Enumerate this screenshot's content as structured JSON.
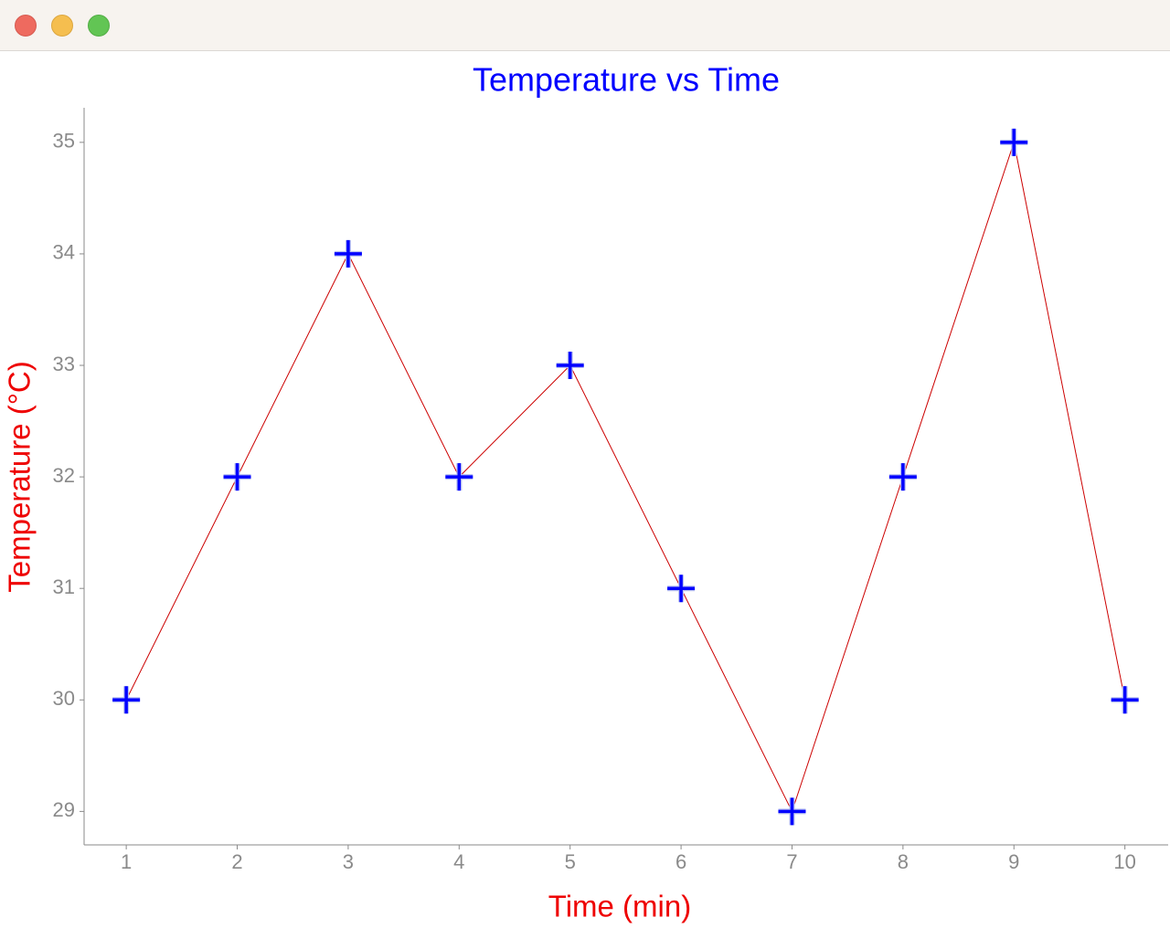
{
  "chart_data": {
    "type": "line",
    "title": "Temperature vs Time",
    "x_label": "Time (min)",
    "y_label": "Temperature (°C)",
    "x": [
      1,
      2,
      3,
      4,
      5,
      6,
      7,
      8,
      9,
      10
    ],
    "values": [
      30,
      32,
      34,
      32,
      33,
      31,
      29,
      32,
      35,
      30
    ],
    "line_color": "#cc0000",
    "marker_color": "#0000ff",
    "marker": "+",
    "xlim": [
      0.62,
      10.39
    ],
    "xticks": [
      1,
      2,
      3,
      4,
      5,
      6,
      7,
      8,
      9,
      10
    ],
    "ylim": [
      28.7,
      35.31
    ],
    "yticks": [
      29,
      30,
      31,
      32,
      33,
      34,
      35
    ],
    "grid": false
  }
}
